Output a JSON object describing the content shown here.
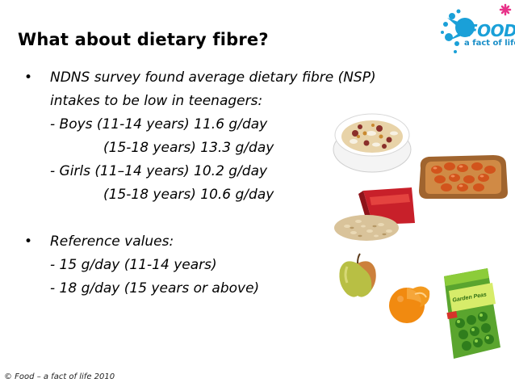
{
  "slide": {
    "title": "What about dietary fibre?",
    "lines": [
      "NDNS survey found average dietary fibre (NSP)",
      "intakes to be low in teenagers:",
      "- Boys (11-14 years) 11.6 g/day",
      "(15-18 years) 13.3 g/day",
      "- Girls (11–14 years) 10.2 g/day",
      "(15-18 years) 10.6 g/day",
      "Reference values:",
      "- 15 g/day (11-14 years)",
      "- 18 g/day (15 years or above)"
    ],
    "bullet_glyph": "•",
    "footer": "© Food – a fact of life 2010"
  },
  "logo": {
    "word": "FOOD",
    "tagline": "a fact of life",
    "colors": {
      "blue": "#1aa0d8",
      "pink": "#e8338a",
      "green": "#7cc242"
    }
  },
  "images": [
    "muesli-bowl-icon",
    "beans-on-toast-icon",
    "oats-packet-icon",
    "apple-icon",
    "orange-icon",
    "garden-peas-bag-icon"
  ],
  "peas_bag_label": "Garden Peas"
}
